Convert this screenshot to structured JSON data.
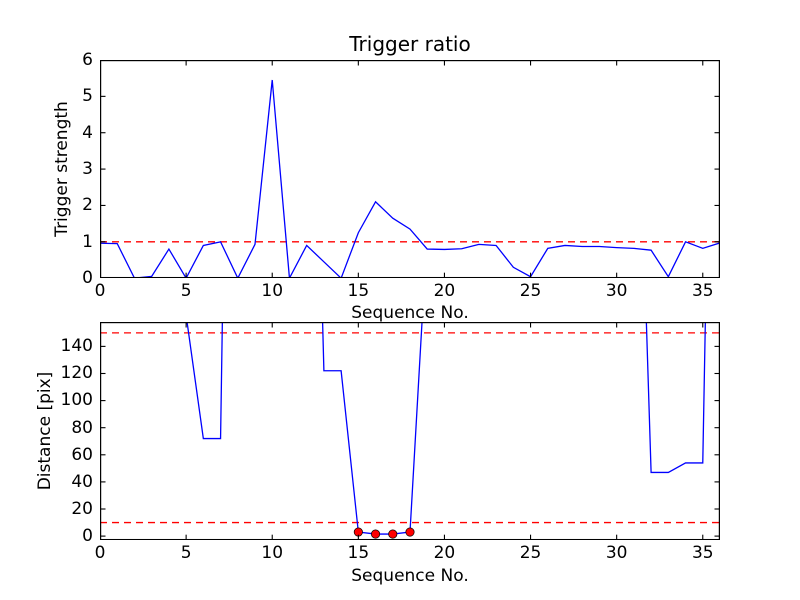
{
  "figure": {
    "bg_color": "#ffffff",
    "line_color": "#0000ff",
    "threshold_color": "#ff0000",
    "marker_color": "#ff0000",
    "marker_edge_color": "#000000",
    "spine_color": "#000000",
    "text_color": "#000000"
  },
  "chart_data": [
    {
      "type": "line",
      "title": "Trigger ratio",
      "xlabel": "Sequence No.",
      "ylabel": "Trigger strength",
      "xlim": [
        0,
        36
      ],
      "ylim": [
        0,
        6
      ],
      "xticks": [
        0,
        5,
        10,
        15,
        20,
        25,
        30,
        35
      ],
      "yticks": [
        0,
        1,
        2,
        3,
        4,
        5,
        6
      ],
      "grid": false,
      "legend": null,
      "thresholds": [
        1.0
      ],
      "x": [
        0,
        1,
        2,
        3,
        4,
        5,
        6,
        7,
        8,
        9,
        10,
        11,
        12,
        13,
        14,
        15,
        16,
        17,
        18,
        19,
        20,
        21,
        22,
        23,
        24,
        25,
        26,
        27,
        28,
        29,
        30,
        31,
        32,
        33,
        34,
        35,
        36
      ],
      "y": [
        0.96,
        0.95,
        0.0,
        0.05,
        0.8,
        0.0,
        0.9,
        1.0,
        0.0,
        0.93,
        5.45,
        0.0,
        0.9,
        0.45,
        0.0,
        1.25,
        2.1,
        1.65,
        1.35,
        0.8,
        0.79,
        0.81,
        0.93,
        0.9,
        0.3,
        0.04,
        0.82,
        0.9,
        0.87,
        0.87,
        0.84,
        0.82,
        0.77,
        0.04,
        1.0,
        0.82,
        0.97
      ]
    },
    {
      "type": "line",
      "title": "",
      "xlabel": "Sequence No.",
      "ylabel": "Distance [pix]",
      "xlim": [
        0,
        36
      ],
      "ylim": [
        -3,
        158
      ],
      "xticks": [
        0,
        5,
        10,
        15,
        20,
        25,
        30,
        35
      ],
      "yticks": [
        0,
        20,
        40,
        60,
        80,
        100,
        120,
        140
      ],
      "grid": false,
      "legend": null,
      "thresholds": [
        150,
        10
      ],
      "x": [
        0,
        1,
        2,
        3,
        4,
        5,
        6,
        7,
        8,
        9,
        10,
        11,
        12,
        13,
        14,
        15,
        16,
        17,
        18,
        19,
        20,
        21,
        22,
        23,
        24,
        25,
        26,
        27,
        28,
        29,
        30,
        31,
        32,
        33,
        34,
        35,
        36
      ],
      "y": [
        900,
        900,
        900,
        900,
        900,
        163,
        72,
        72,
        900,
        900,
        900,
        900,
        600,
        122,
        122,
        3,
        1.5,
        1.5,
        3,
        225,
        450,
        450,
        450,
        450,
        450,
        450,
        450,
        450,
        450,
        450,
        450,
        450,
        47,
        47,
        54,
        54,
        750
      ],
      "markers": {
        "x": [
          15,
          16,
          17,
          18
        ],
        "y": [
          3,
          1.5,
          1.5,
          3
        ]
      }
    }
  ]
}
